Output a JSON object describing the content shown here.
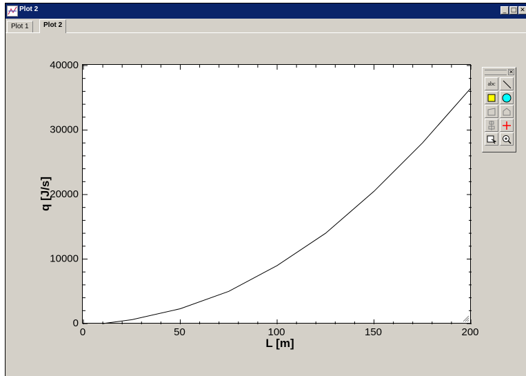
{
  "window": {
    "title": "Plot 2"
  },
  "tabs": [
    {
      "label": "Plot 1"
    },
    {
      "label": "Plot 2"
    }
  ],
  "toolbox": {
    "text_tool_label": "abc"
  },
  "chart_data": {
    "type": "line",
    "title": "",
    "xlabel": "L  [m]",
    "ylabel": "q  [J/s]",
    "xlim": [
      0,
      200
    ],
    "ylim": [
      0,
      40000
    ],
    "x_ticks": [
      0,
      50,
      100,
      150,
      200
    ],
    "y_ticks": [
      0,
      10000,
      20000,
      30000,
      40000
    ],
    "x_tick_labels": [
      "0",
      "50",
      "100",
      "150",
      "200"
    ],
    "y_tick_labels": [
      "0",
      "10000",
      "20000",
      "30000",
      "40000"
    ],
    "grid": false,
    "series": [
      {
        "x": [
          10,
          25,
          50,
          75,
          100,
          125,
          150,
          175,
          200
        ],
        "y": [
          0,
          600,
          2300,
          5000,
          9000,
          14000,
          20500,
          28000,
          36500
        ]
      }
    ]
  }
}
